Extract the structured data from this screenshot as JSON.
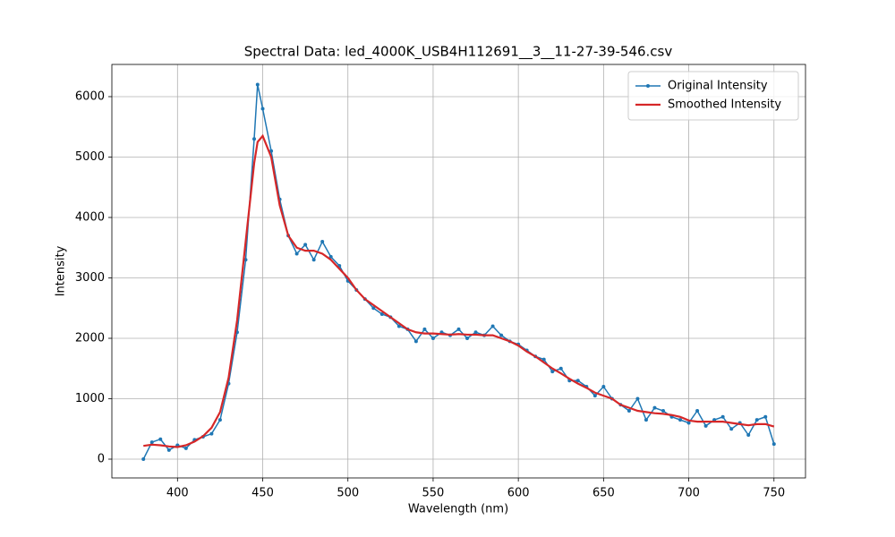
{
  "chart_data": {
    "type": "line",
    "title": "Spectral Data: led_4000K_USB4H112691__3__11-27-39-546.csv",
    "x_label": "Wavelength (nm)",
    "y_label": "Intensity",
    "x": [
      380,
      385,
      390,
      395,
      400,
      405,
      410,
      415,
      420,
      425,
      430,
      435,
      440,
      445,
      447,
      450,
      455,
      460,
      465,
      470,
      475,
      480,
      485,
      490,
      495,
      500,
      505,
      510,
      515,
      520,
      525,
      530,
      535,
      540,
      545,
      550,
      555,
      560,
      565,
      570,
      575,
      580,
      585,
      590,
      595,
      600,
      605,
      610,
      615,
      620,
      625,
      630,
      635,
      640,
      645,
      650,
      655,
      660,
      665,
      670,
      675,
      680,
      685,
      690,
      695,
      700,
      705,
      710,
      715,
      720,
      725,
      730,
      735,
      740,
      745,
      750
    ],
    "series": [
      {
        "name": "Original Intensity",
        "color": "#1f77b4",
        "marker": true,
        "values": [
          0,
          280,
          330,
          150,
          230,
          180,
          320,
          370,
          420,
          650,
          1250,
          2100,
          3300,
          5300,
          6200,
          5800,
          5100,
          4300,
          3700,
          3400,
          3550,
          3300,
          3600,
          3350,
          3200,
          2950,
          2800,
          2650,
          2500,
          2400,
          2350,
          2200,
          2150,
          1950,
          2150,
          2000,
          2100,
          2050,
          2150,
          2000,
          2100,
          2050,
          2200,
          2050,
          1950,
          1900,
          1800,
          1700,
          1650,
          1450,
          1500,
          1300,
          1300,
          1200,
          1050,
          1200,
          1000,
          900,
          800,
          1000,
          650,
          850,
          800,
          700,
          650,
          600,
          800,
          550,
          650,
          700,
          500,
          600,
          400,
          650,
          700,
          250
        ]
      },
      {
        "name": "Smoothed Intensity",
        "color": "#d62728",
        "marker": false,
        "values": [
          220,
          240,
          230,
          210,
          200,
          230,
          290,
          380,
          520,
          780,
          1350,
          2300,
          3600,
          4900,
          5250,
          5350,
          5000,
          4200,
          3700,
          3500,
          3450,
          3450,
          3400,
          3300,
          3150,
          3000,
          2800,
          2650,
          2550,
          2450,
          2350,
          2250,
          2150,
          2100,
          2080,
          2080,
          2070,
          2060,
          2070,
          2060,
          2060,
          2050,
          2050,
          2000,
          1950,
          1880,
          1780,
          1700,
          1600,
          1500,
          1420,
          1330,
          1250,
          1180,
          1100,
          1050,
          1000,
          900,
          850,
          800,
          780,
          760,
          750,
          730,
          700,
          640,
          620,
          620,
          620,
          620,
          600,
          580,
          560,
          580,
          580,
          540
        ]
      }
    ],
    "xlim": [
      361.5,
      768.5
    ],
    "ylim": [
      -311,
      6533
    ],
    "xticks": [
      400,
      450,
      500,
      550,
      600,
      650,
      700,
      750
    ],
    "yticks": [
      0,
      1000,
      2000,
      3000,
      4000,
      5000,
      6000
    ],
    "grid": true,
    "legend": "upper-right"
  }
}
